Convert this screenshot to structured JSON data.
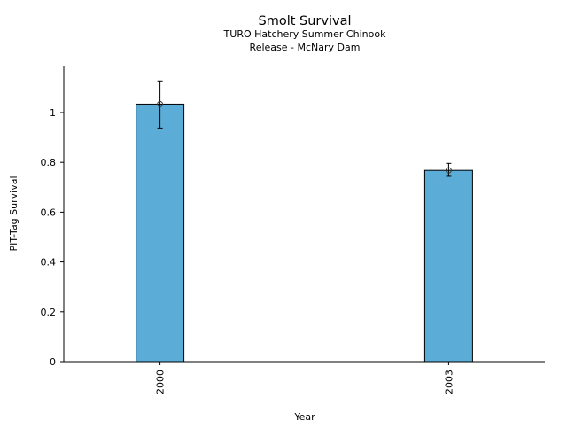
{
  "chart_data": {
    "type": "bar",
    "title": "Smolt Survival",
    "subtitle_lines": [
      "TURO Hatchery Summer Chinook",
      "Release - McNary Dam"
    ],
    "xlabel": "Year",
    "ylabel": "PIT-Tag Survival",
    "categories": [
      "2000",
      "2003"
    ],
    "values": [
      1.034,
      0.768
    ],
    "error_low": [
      0.938,
      0.744
    ],
    "error_high": [
      1.127,
      0.796
    ],
    "ylim": [
      0,
      1.185
    ],
    "yticks": [
      0,
      0.2,
      0.4,
      0.6,
      0.8,
      1
    ],
    "ytick_labels": [
      "0",
      "0.2",
      "0.4",
      "0.6",
      "0.8",
      "1"
    ],
    "bar_color": "#5bacd6",
    "grid": false
  }
}
